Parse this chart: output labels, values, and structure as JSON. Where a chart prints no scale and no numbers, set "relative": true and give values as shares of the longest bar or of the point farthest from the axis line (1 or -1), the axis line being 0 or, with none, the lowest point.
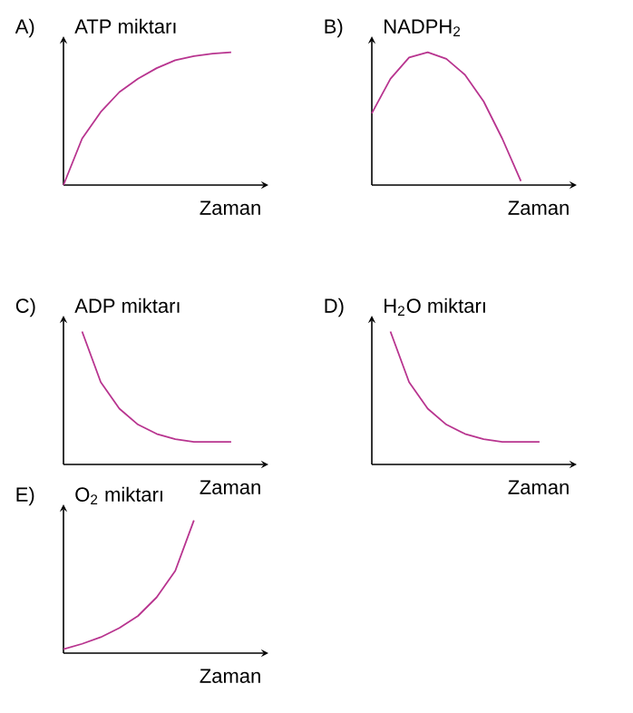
{
  "chart_data": [
    {
      "type": "line",
      "relative": true,
      "title": "A)",
      "ylabel": "ATP miktarı",
      "xlabel": "Zaman",
      "categories": [
        null,
        null,
        null,
        null,
        null,
        null,
        null,
        null,
        null,
        null
      ],
      "series": [
        {
          "color": "#b8348f",
          "values": [
            0,
            0.35,
            0.55,
            0.7,
            0.8,
            0.88,
            0.94,
            0.97,
            0.99,
            1.0
          ]
        }
      ]
    },
    {
      "type": "line",
      "relative": true,
      "title": "B)",
      "ylabel": "NADPH$_{2}$",
      "xlabel": "Zaman",
      "categories": [
        null,
        null,
        null,
        null,
        null,
        null,
        null,
        null,
        null
      ],
      "series": [
        {
          "color": "#b8348f",
          "values": [
            0.54,
            0.8,
            0.96,
            1.0,
            0.95,
            0.83,
            0.63,
            0.35,
            0.03
          ]
        }
      ]
    },
    {
      "type": "line",
      "relative": true,
      "title": "C)",
      "ylabel": "ADP miktarı",
      "xlabel": "Zaman",
      "categories": [
        null,
        null,
        null,
        null,
        null,
        null,
        null,
        null,
        null,
        null
      ],
      "series": [
        {
          "color": "#b8348f",
          "values": [
            null,
            1.0,
            0.62,
            0.42,
            0.3,
            0.23,
            0.19,
            0.17,
            0.17,
            0.17
          ]
        }
      ]
    },
    {
      "type": "line",
      "relative": true,
      "title": "D)",
      "ylabel": "H$_{2}$O miktarı",
      "xlabel": "Zaman",
      "categories": [
        null,
        null,
        null,
        null,
        null,
        null,
        null,
        null,
        null,
        null
      ],
      "series": [
        {
          "color": "#b8348f",
          "values": [
            null,
            1.0,
            0.62,
            0.42,
            0.3,
            0.23,
            0.19,
            0.17,
            0.17,
            0.17
          ]
        }
      ]
    },
    {
      "type": "line",
      "relative": true,
      "title": "E)",
      "ylabel": "O$_{2}$ miktarı",
      "xlabel": "Zaman",
      "categories": [
        null,
        null,
        null,
        null,
        null,
        null,
        null,
        null
      ],
      "series": [
        {
          "color": "#b8348f",
          "values": [
            0.03,
            0.07,
            0.12,
            0.19,
            0.28,
            0.42,
            0.62,
            1.0
          ]
        }
      ]
    }
  ]
}
